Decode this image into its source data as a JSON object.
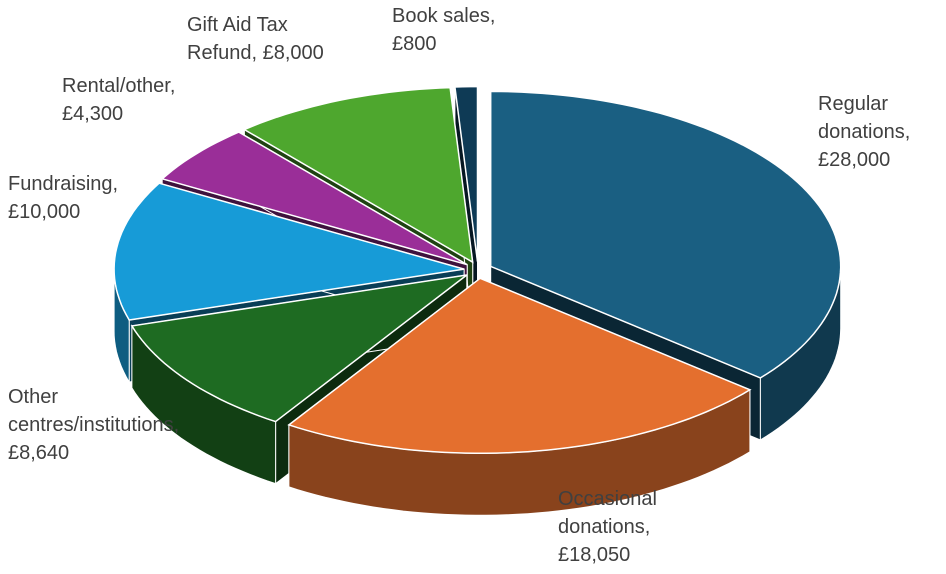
{
  "chart_data": {
    "type": "pie3d",
    "values": [
      28000,
      18050,
      8640,
      10000,
      4300,
      8000,
      800
    ],
    "value_labels": [
      "Regular donations, £28,000",
      "Occasional donations, £18,050",
      "Other centres/institutions, £8,640",
      "Fundraising, £10,000",
      "Rental/other, £4,300",
      "Gift Aid Tax Refund, £8,000",
      "Book sales, £800"
    ],
    "colors": [
      "#1a5f82",
      "#e46f2e",
      "#1e6b22",
      "#179bd7",
      "#9a2e98",
      "#4ea72e",
      "#0e3a55"
    ]
  }
}
